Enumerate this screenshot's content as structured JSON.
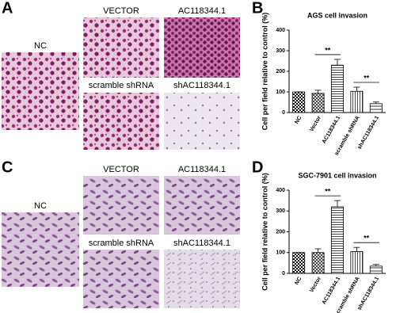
{
  "panel_labels": [
    "A",
    "B",
    "C",
    "D"
  ],
  "micrograph_labels_a": [
    "NC",
    "VECTOR",
    "AC118344.1",
    "scramble shRNA",
    "shAC118344.1"
  ],
  "micrograph_labels_c": [
    "NC",
    "VECTOR",
    "AC118344.1",
    "scramble shRNA",
    "shAC118344.1"
  ],
  "chart_data": [
    {
      "type": "bar",
      "title": "AGS cell invasion",
      "y_label": "Cell per field relative to control (%)",
      "categories": [
        "NC",
        "Vector",
        "AC118344.1",
        "scramble shRNA",
        "shAC118344.1"
      ],
      "values": [
        100,
        93,
        230,
        103,
        43
      ],
      "errors": [
        0,
        15,
        28,
        20,
        8
      ],
      "ylim": [
        0,
        400
      ],
      "yticks": [
        0,
        100,
        200,
        300,
        400
      ],
      "annotations": [
        "**",
        "**"
      ]
    },
    {
      "type": "bar",
      "title": "SGC-7901 cell invasion",
      "y_label": "Cell per field relative to control (%)",
      "categories": [
        "NC",
        "Vector",
        "AC118344.1",
        "scramble shRNA",
        "shAC118344.1"
      ],
      "values": [
        100,
        100,
        320,
        105,
        35
      ],
      "errors": [
        0,
        18,
        30,
        20,
        8
      ],
      "ylim": [
        0,
        400
      ],
      "yticks": [
        0,
        100,
        200,
        300,
        400
      ],
      "annotations": [
        "**",
        "**"
      ]
    }
  ]
}
